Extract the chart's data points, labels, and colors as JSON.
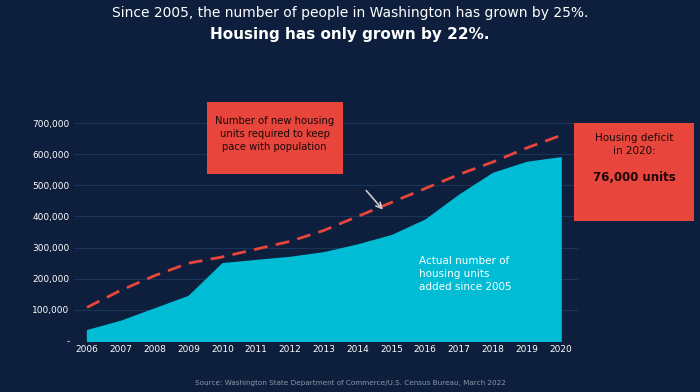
{
  "title_line1": "Since 2005, the number of people in Washington has grown by 25%.",
  "title_line2": "Housing has only grown by 22%.",
  "bg_color": "#0d1f3c",
  "plot_bg_color": "#0d1f3c",
  "years": [
    2006,
    2007,
    2008,
    2009,
    2010,
    2011,
    2012,
    2013,
    2014,
    2015,
    2016,
    2017,
    2018,
    2019,
    2020
  ],
  "population_line": [
    108000,
    163000,
    210000,
    250000,
    270000,
    295000,
    320000,
    355000,
    400000,
    445000,
    490000,
    535000,
    575000,
    620000,
    660000
  ],
  "housing_area": [
    35000,
    65000,
    105000,
    145000,
    250000,
    260000,
    270000,
    285000,
    310000,
    340000,
    390000,
    470000,
    540000,
    575000,
    590000
  ],
  "fill_color": "#00bcd4",
  "dashed_color": "#e8453c",
  "tick_color": "#ffffff",
  "grid_color": "#1e3a5f",
  "annotation_box_color": "#e8453c",
  "annotation_text_color": "#1a0808",
  "source_text": "Source: Washington State Department of Commerce/U.S. Census Bureau, March 2022",
  "ylim": [
    0,
    730000
  ],
  "yticks": [
    0,
    100000,
    200000,
    300000,
    400000,
    500000,
    600000,
    700000
  ]
}
